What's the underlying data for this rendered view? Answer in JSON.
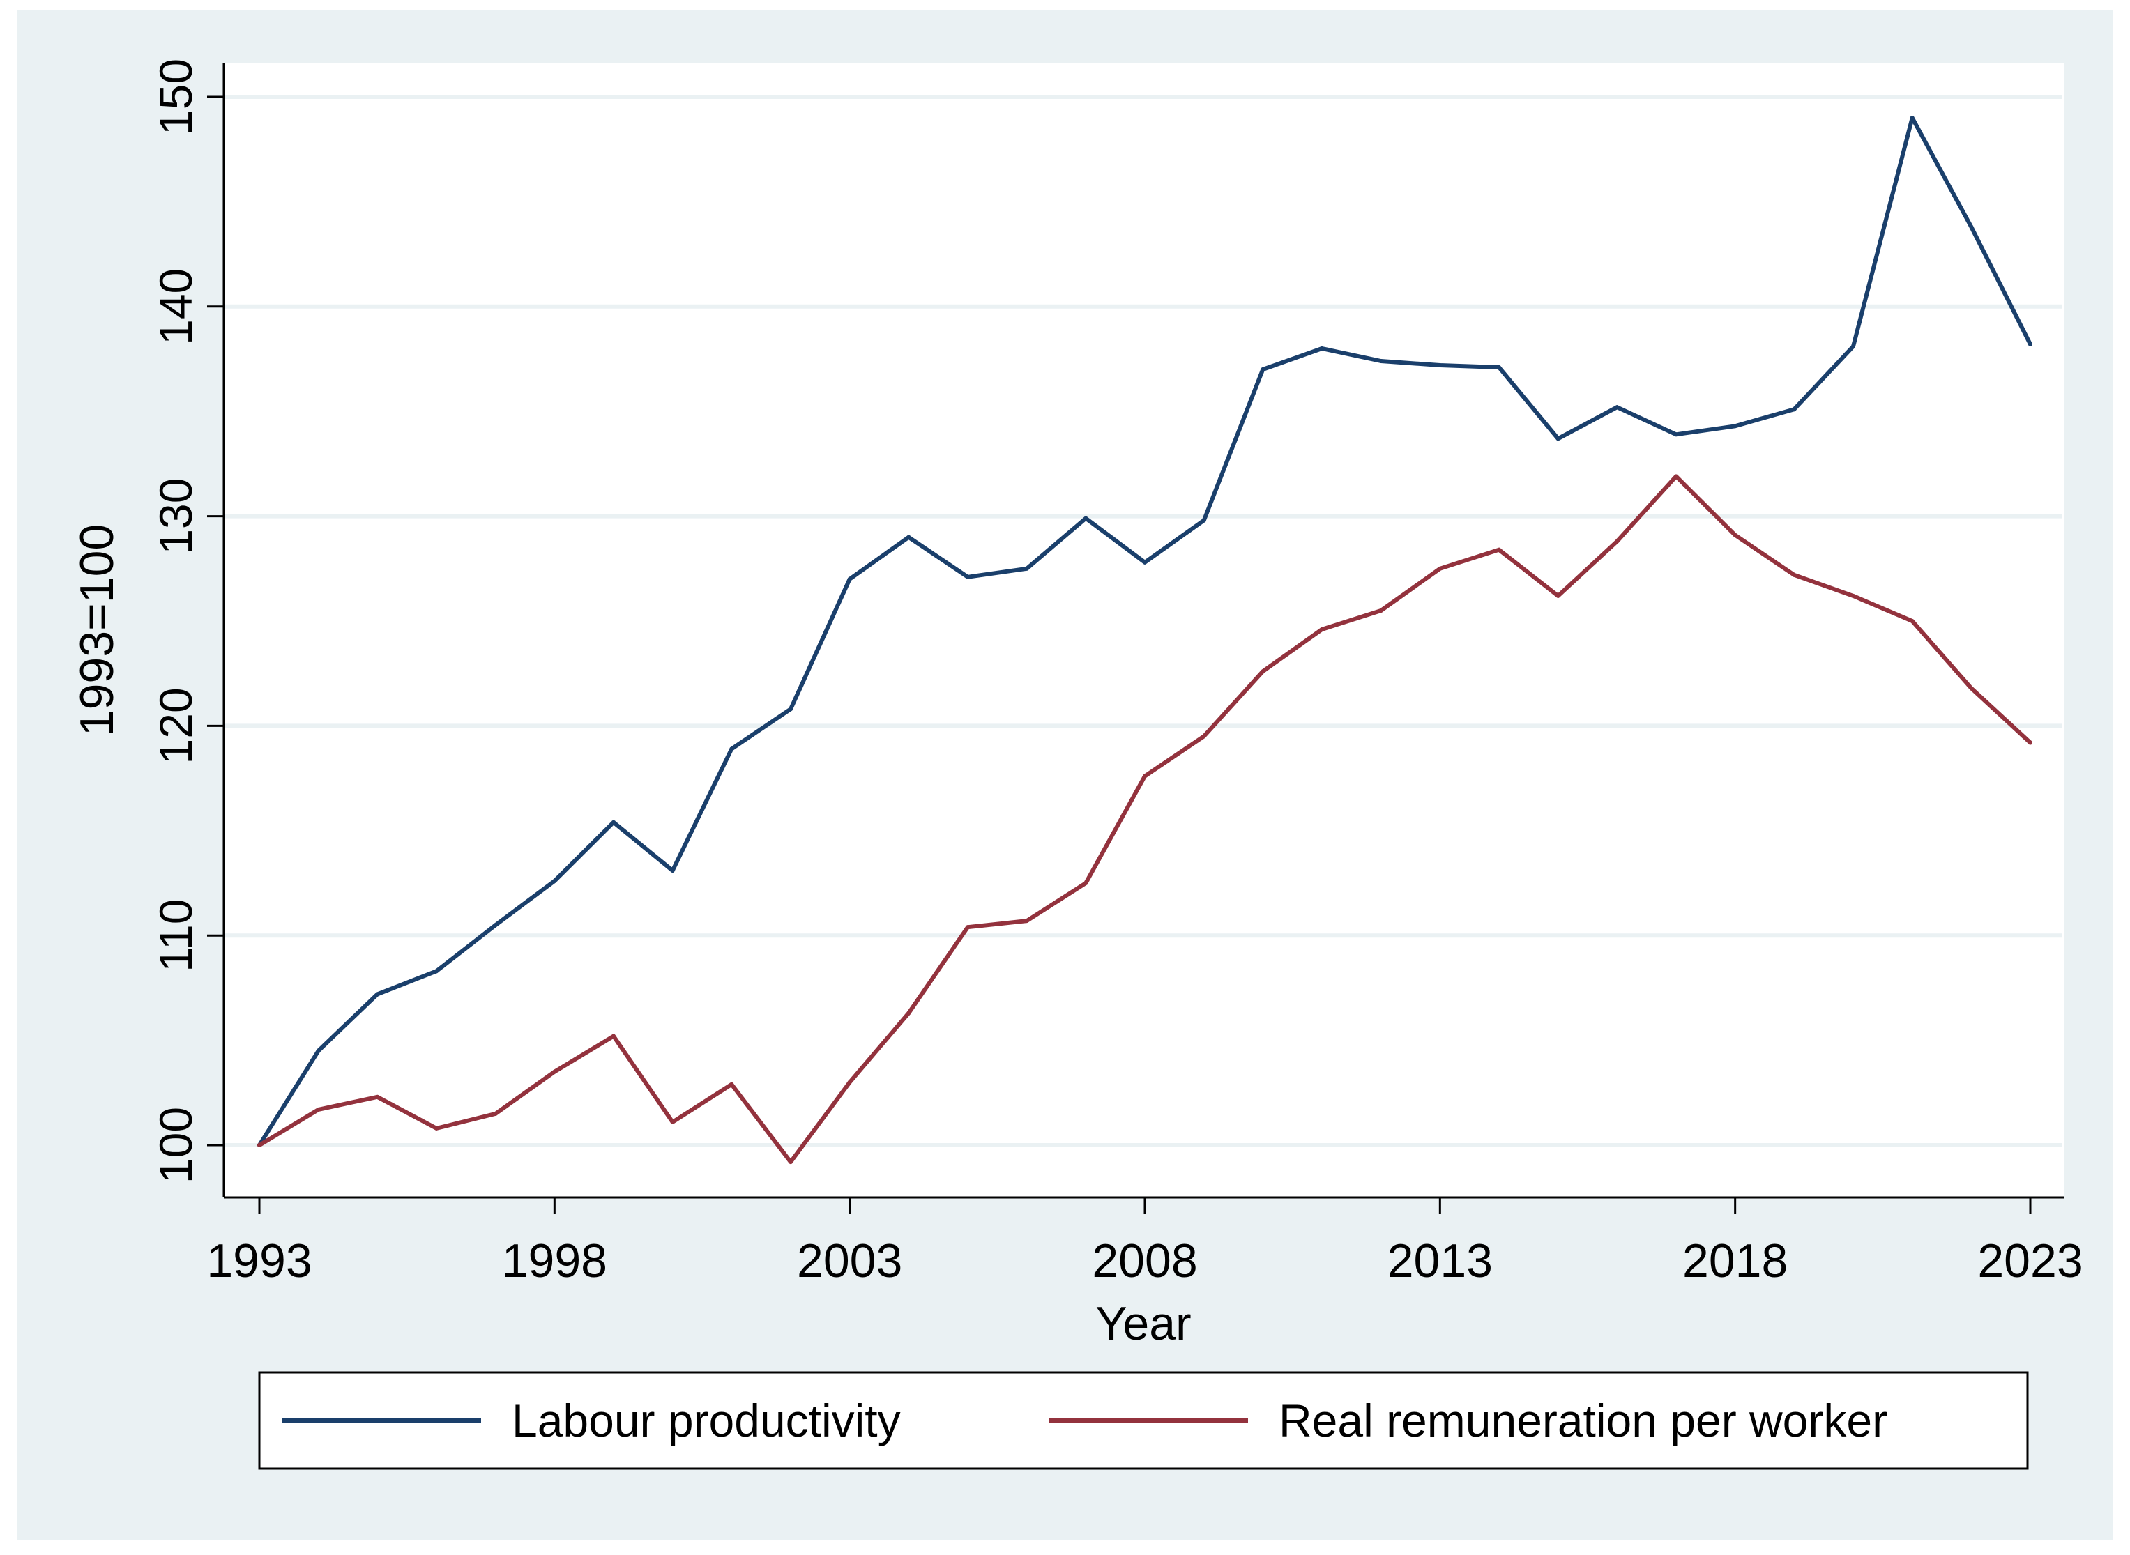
{
  "chart_data": {
    "type": "line",
    "title": "",
    "xlabel": "Year",
    "ylabel": "1993=100",
    "xlim": [
      1993,
      2023
    ],
    "ylim": [
      100,
      150
    ],
    "xticks": [
      1993,
      1998,
      2003,
      2008,
      2013,
      2018,
      2023
    ],
    "yticks": [
      100,
      110,
      120,
      130,
      140,
      150
    ],
    "grid": true,
    "legend_position": "bottom",
    "x": [
      1993,
      1994,
      1995,
      1996,
      1997,
      1998,
      1999,
      2000,
      2001,
      2002,
      2003,
      2004,
      2005,
      2006,
      2007,
      2008,
      2009,
      2010,
      2011,
      2012,
      2013,
      2014,
      2015,
      2016,
      2017,
      2018,
      2019,
      2020,
      2021,
      2022,
      2023
    ],
    "series": [
      {
        "name": "Labour productivity",
        "color": "#1a3f6b",
        "values": [
          100.0,
          104.5,
          107.2,
          108.3,
          110.5,
          112.6,
          115.4,
          113.1,
          118.9,
          120.8,
          127.0,
          129.0,
          127.1,
          127.5,
          129.9,
          127.8,
          129.8,
          137.0,
          138.0,
          137.4,
          137.2,
          137.1,
          133.7,
          135.2,
          133.9,
          134.3,
          135.1,
          138.1,
          149.0,
          143.8,
          138.2
        ]
      },
      {
        "name": "Real remuneration per worker",
        "color": "#93323d",
        "values": [
          100.0,
          101.7,
          102.3,
          100.8,
          101.5,
          103.5,
          105.2,
          101.1,
          102.9,
          99.2,
          103.0,
          106.3,
          110.4,
          110.7,
          112.5,
          117.6,
          119.5,
          122.6,
          124.6,
          125.5,
          127.5,
          128.4,
          126.2,
          128.8,
          131.9,
          129.1,
          127.2,
          126.2,
          125.0,
          121.8,
          119.2
        ]
      }
    ]
  }
}
